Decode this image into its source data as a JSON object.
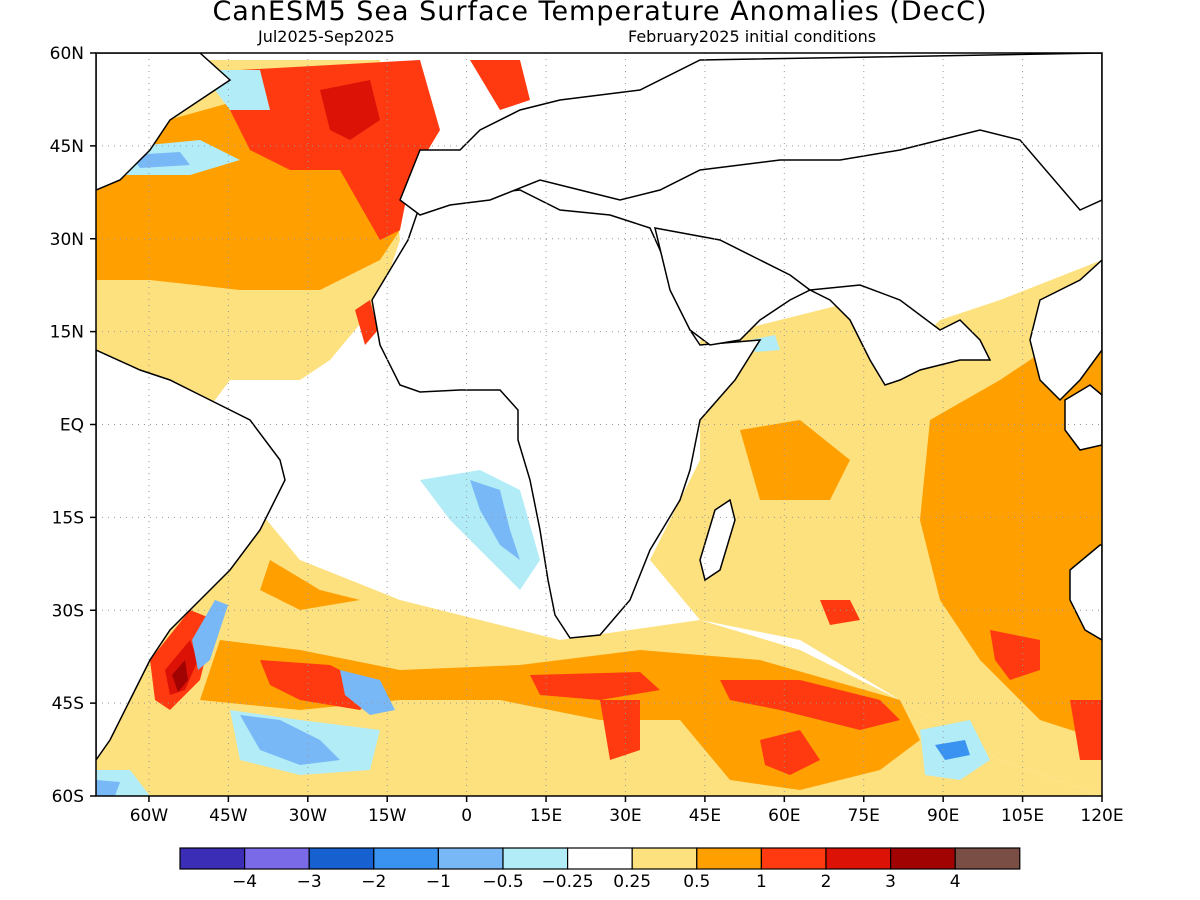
{
  "title": "CanESM5 Sea Surface Temperature Anomalies (DecC)",
  "period": "Jul2025-Sep2025",
  "initial_conditions": "February2025 initial conditions",
  "map": {
    "lon_range": [
      -70,
      120
    ],
    "lat_range": [
      -60,
      60
    ],
    "lat_ticks": [
      {
        "value": 60,
        "label": "60N"
      },
      {
        "value": 45,
        "label": "45N"
      },
      {
        "value": 30,
        "label": "30N"
      },
      {
        "value": 15,
        "label": "15N"
      },
      {
        "value": 0,
        "label": "EQ"
      },
      {
        "value": -15,
        "label": "15S"
      },
      {
        "value": -30,
        "label": "30S"
      },
      {
        "value": -45,
        "label": "45S"
      },
      {
        "value": -60,
        "label": "60S"
      }
    ],
    "lon_ticks": [
      {
        "value": -60,
        "label": "60W"
      },
      {
        "value": -45,
        "label": "45W"
      },
      {
        "value": -30,
        "label": "30W"
      },
      {
        "value": -15,
        "label": "15W"
      },
      {
        "value": 0,
        "label": "0"
      },
      {
        "value": 15,
        "label": "15E"
      },
      {
        "value": 30,
        "label": "30E"
      },
      {
        "value": 45,
        "label": "45E"
      },
      {
        "value": 60,
        "label": "60E"
      },
      {
        "value": 75,
        "label": "75E"
      },
      {
        "value": 90,
        "label": "90E"
      },
      {
        "value": 105,
        "label": "105E"
      },
      {
        "value": 120,
        "label": "120E"
      }
    ],
    "gridlines": "dotted"
  },
  "colorbar": {
    "colors": [
      "#3b2db5",
      "#7b6ae8",
      "#1660d0",
      "#3a93f0",
      "#79b8f6",
      "#b1ecf7",
      "#ffffff",
      "#fee17f",
      "#ff9f00",
      "#ff3a10",
      "#dc1207",
      "#a10303",
      "#7a4d45"
    ],
    "labels": [
      "-4",
      "-3",
      "-2",
      "-1",
      "-0.5",
      "-0.25",
      "0.25",
      "0.5",
      "1",
      "2",
      "3",
      "4"
    ]
  }
}
